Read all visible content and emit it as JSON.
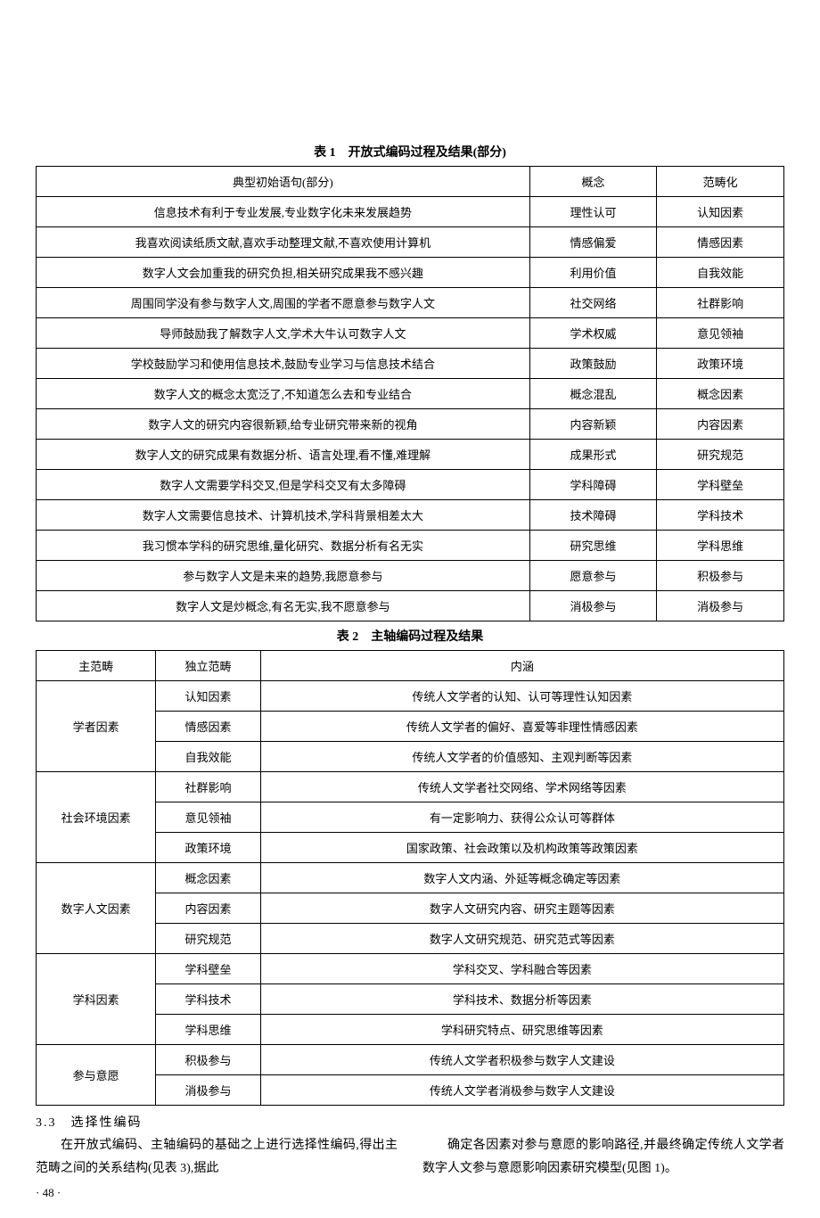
{
  "table1": {
    "caption": "表 1　开放式编码过程及结果(部分)",
    "headers": {
      "stmt": "典型初始语句(部分)",
      "concept": "概念",
      "category": "范畴化"
    },
    "rows": [
      {
        "stmt": "信息技术有利于专业发展,专业数字化未来发展趋势",
        "concept": "理性认可",
        "category": "认知因素"
      },
      {
        "stmt": "我喜欢阅读纸质文献,喜欢手动整理文献,不喜欢使用计算机",
        "concept": "情感偏爱",
        "category": "情感因素"
      },
      {
        "stmt": "数字人文会加重我的研究负担,相关研究成果我不感兴趣",
        "concept": "利用价值",
        "category": "自我效能"
      },
      {
        "stmt": "周围同学没有参与数字人文,周围的学者不愿意参与数字人文",
        "concept": "社交网络",
        "category": "社群影响"
      },
      {
        "stmt": "导师鼓励我了解数字人文,学术大牛认可数字人文",
        "concept": "学术权威",
        "category": "意见领袖"
      },
      {
        "stmt": "学校鼓励学习和使用信息技术,鼓励专业学习与信息技术结合",
        "concept": "政策鼓励",
        "category": "政策环境"
      },
      {
        "stmt": "数字人文的概念太宽泛了,不知道怎么去和专业结合",
        "concept": "概念混乱",
        "category": "概念因素"
      },
      {
        "stmt": "数字人文的研究内容很新颖,给专业研究带来新的视角",
        "concept": "内容新颖",
        "category": "内容因素"
      },
      {
        "stmt": "数字人文的研究成果有数据分析、语言处理,看不懂,难理解",
        "concept": "成果形式",
        "category": "研究规范"
      },
      {
        "stmt": "数字人文需要学科交叉,但是学科交叉有太多障碍",
        "concept": "学科障碍",
        "category": "学科壁垒"
      },
      {
        "stmt": "数字人文需要信息技术、计算机技术,学科背景相差太大",
        "concept": "技术障碍",
        "category": "学科技术"
      },
      {
        "stmt": "我习惯本学科的研究思维,量化研究、数据分析有名无实",
        "concept": "研究思维",
        "category": "学科思维"
      },
      {
        "stmt": "参与数字人文是未来的趋势,我愿意参与",
        "concept": "愿意参与",
        "category": "积极参与"
      },
      {
        "stmt": "数字人文是炒概念,有名无实,我不愿意参与",
        "concept": "消极参与",
        "category": "消极参与"
      }
    ]
  },
  "table2": {
    "caption": "表 2　主轴编码过程及结果",
    "headers": {
      "main": "主范畴",
      "ind": "独立范畴",
      "desc": "内涵"
    },
    "groups": [
      {
        "main": "学者因素",
        "items": [
          {
            "ind": "认知因素",
            "desc": "传统人文学者的认知、认可等理性认知因素"
          },
          {
            "ind": "情感因素",
            "desc": "传统人文学者的偏好、喜爱等非理性情感因素"
          },
          {
            "ind": "自我效能",
            "desc": "传统人文学者的价值感知、主观判断等因素"
          }
        ]
      },
      {
        "main": "社会环境因素",
        "items": [
          {
            "ind": "社群影响",
            "desc": "传统人文学者社交网络、学术网络等因素"
          },
          {
            "ind": "意见领袖",
            "desc": "有一定影响力、获得公众认可等群体"
          },
          {
            "ind": "政策环境",
            "desc": "国家政策、社会政策以及机构政策等政策因素"
          }
        ]
      },
      {
        "main": "数字人文因素",
        "items": [
          {
            "ind": "概念因素",
            "desc": "数字人文内涵、外延等概念确定等因素"
          },
          {
            "ind": "内容因素",
            "desc": "数字人文研究内容、研究主题等因素"
          },
          {
            "ind": "研究规范",
            "desc": "数字人文研究规范、研究范式等因素"
          }
        ]
      },
      {
        "main": "学科因素",
        "items": [
          {
            "ind": "学科壁垒",
            "desc": "学科交叉、学科融合等因素"
          },
          {
            "ind": "学科技术",
            "desc": "学科技术、数据分析等因素"
          },
          {
            "ind": "学科思维",
            "desc": "学科研究特点、研究思维等因素"
          }
        ]
      },
      {
        "main": "参与意愿",
        "items": [
          {
            "ind": "积极参与",
            "desc": "传统人文学者积极参与数字人文建设"
          },
          {
            "ind": "消极参与",
            "desc": "传统人文学者消极参与数字人文建设"
          }
        ]
      }
    ]
  },
  "section": {
    "heading": "3.3　选择性编码"
  },
  "body": {
    "left": "在开放式编码、主轴编码的基础之上进行选择性编码,得出主范畴之间的关系结构(见表 3),据此",
    "right": "确定各因素对参与意愿的影响路径,并最终确定传统人文学者数字人文参与意愿影响因素研究模型(见图 1)。"
  },
  "page": "· 48 ·"
}
